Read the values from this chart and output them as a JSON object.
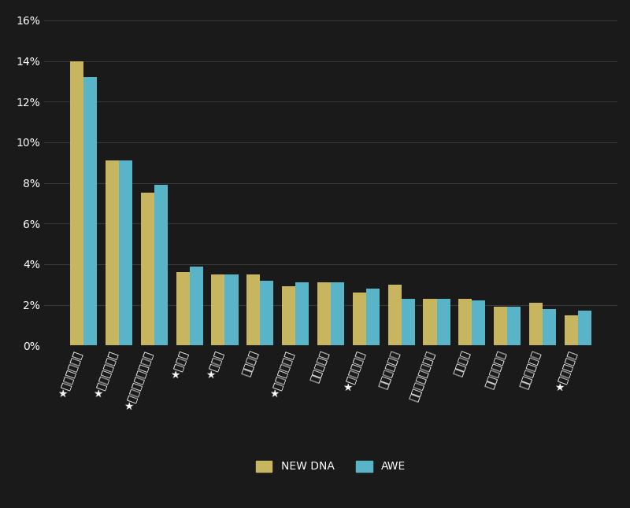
{
  "categories": [
    "★ロサンゼルス",
    "★ニューヨーク",
    "★サンフランシスコ",
    "★ダラス",
    "★シカゴ",
    "シアトル",
    "★ヒューストン",
    "ワシントン",
    "★アトランタ",
    "サクラメント",
    "フィラデルフィア",
    "ボストン",
    "フェニックス",
    "サンディエゴ",
    "★ラスベガス"
  ],
  "new_dna": [
    14.0,
    9.1,
    7.5,
    3.6,
    3.5,
    3.5,
    2.9,
    3.1,
    2.6,
    3.0,
    2.3,
    2.3,
    1.9,
    2.1,
    1.5
  ],
  "awe": [
    13.2,
    9.1,
    7.9,
    3.9,
    3.5,
    3.2,
    3.1,
    3.1,
    2.8,
    2.3,
    2.3,
    2.2,
    1.9,
    1.8,
    1.7
  ],
  "new_dna_color": "#c8b560",
  "awe_color": "#5ab4c8",
  "background_color": "#1a1a1a",
  "text_color": "#ffffff",
  "grid_color": "#3a3a3a",
  "ylim": [
    0,
    16
  ],
  "yticks": [
    0,
    2,
    4,
    6,
    8,
    10,
    12,
    14,
    16
  ],
  "legend_labels": [
    "NEW DNA",
    "AWE"
  ],
  "bar_width": 0.38
}
